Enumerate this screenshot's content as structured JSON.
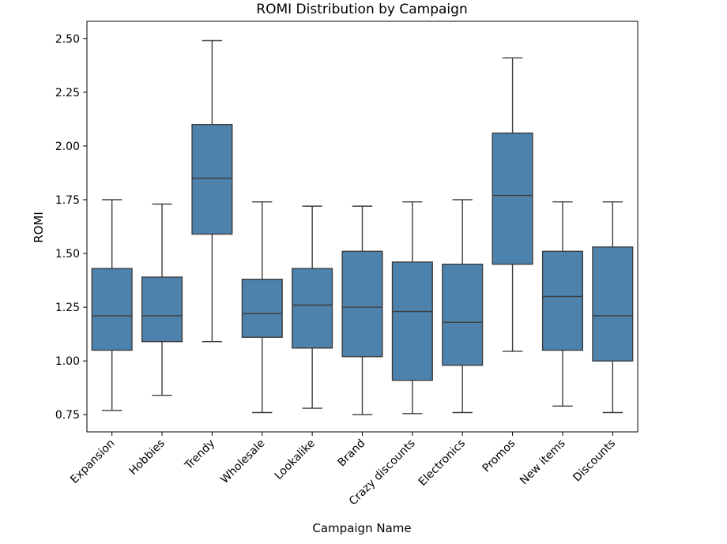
{
  "chart_data": {
    "type": "box",
    "title": "ROMI Distribution by Campaign",
    "xlabel": "Campaign Name",
    "ylabel": "ROMI",
    "ylim": [
      0.67,
      2.58
    ],
    "yticks": [
      0.75,
      1.0,
      1.25,
      1.5,
      1.75,
      2.0,
      2.25,
      2.5
    ],
    "ytick_labels": [
      "0.75",
      "1.00",
      "1.25",
      "1.50",
      "1.75",
      "2.00",
      "2.25",
      "2.50"
    ],
    "box_color": "#4d82ad",
    "line_color": "#3d3d3d",
    "grid": false,
    "categories": [
      "Expansion",
      "Hobbies",
      "Trendy",
      "Wholesale",
      "Lookalike",
      "Brand",
      "Crazy discounts",
      "Electronics",
      "Promos",
      "New items",
      "Discounts"
    ],
    "boxes": [
      {
        "min": 0.77,
        "q1": 1.05,
        "median": 1.21,
        "q3": 1.43,
        "max": 1.75
      },
      {
        "min": 0.84,
        "q1": 1.09,
        "median": 1.21,
        "q3": 1.39,
        "max": 1.73
      },
      {
        "min": 1.09,
        "q1": 1.59,
        "median": 1.85,
        "q3": 2.1,
        "max": 2.49
      },
      {
        "min": 0.76,
        "q1": 1.11,
        "median": 1.22,
        "q3": 1.38,
        "max": 1.74
      },
      {
        "min": 0.78,
        "q1": 1.06,
        "median": 1.26,
        "q3": 1.43,
        "max": 1.72
      },
      {
        "min": 0.75,
        "q1": 1.02,
        "median": 1.25,
        "q3": 1.51,
        "max": 1.72
      },
      {
        "min": 0.755,
        "q1": 0.91,
        "median": 1.23,
        "q3": 1.46,
        "max": 1.74
      },
      {
        "min": 0.76,
        "q1": 0.98,
        "median": 1.18,
        "q3": 1.45,
        "max": 1.75
      },
      {
        "min": 1.045,
        "q1": 1.45,
        "median": 1.77,
        "q3": 2.06,
        "max": 2.41
      },
      {
        "min": 0.79,
        "q1": 1.05,
        "median": 1.3,
        "q3": 1.51,
        "max": 1.74
      },
      {
        "min": 0.76,
        "q1": 1.0,
        "median": 1.21,
        "q3": 1.53,
        "max": 1.74
      }
    ]
  }
}
